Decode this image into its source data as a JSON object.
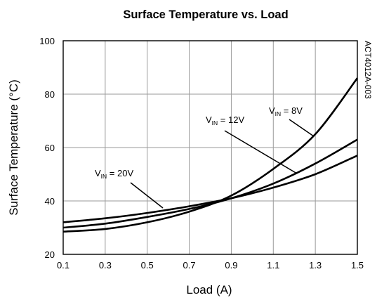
{
  "chart_data": {
    "type": "line",
    "title": "Surface Temperature vs. Load",
    "xlabel": "Load (A)",
    "ylabel": "Surface Temperature (°C)",
    "xlim": [
      0.1,
      1.5
    ],
    "ylim": [
      20,
      100
    ],
    "x_ticks": [
      "0.1",
      "0.3",
      "0.5",
      "0.7",
      "0.9",
      "1.1",
      "1.3",
      "1.5"
    ],
    "y_ticks": [
      "20",
      "40",
      "60",
      "80",
      "100"
    ],
    "grid": true,
    "legend": "none",
    "line_color": "#000000",
    "series": [
      {
        "name": "VIN = 8V",
        "x": [
          0.1,
          0.3,
          0.5,
          0.7,
          0.9,
          1.1,
          1.3,
          1.5
        ],
        "y": [
          28.5,
          29.5,
          32,
          36,
          42,
          52,
          65,
          86
        ]
      },
      {
        "name": "VIN = 12V",
        "x": [
          0.1,
          0.3,
          0.5,
          0.7,
          0.9,
          1.1,
          1.3,
          1.5
        ],
        "y": [
          30,
          31.5,
          34,
          37,
          41,
          46.5,
          54,
          63
        ]
      },
      {
        "name": "VIN = 20V",
        "x": [
          0.1,
          0.3,
          0.5,
          0.7,
          0.9,
          1.1,
          1.3,
          1.5
        ],
        "y": [
          32,
          33.5,
          35.5,
          38,
          41,
          45,
          50,
          57
        ]
      }
    ],
    "annotations": [
      {
        "main": "V",
        "sub": "IN",
        "suffix": " = 8V"
      },
      {
        "main": "V",
        "sub": "IN",
        "suffix": " = 12V"
      },
      {
        "main": "V",
        "sub": "IN",
        "suffix": " = 20V"
      }
    ],
    "side_label": "ACT4012A-003"
  }
}
